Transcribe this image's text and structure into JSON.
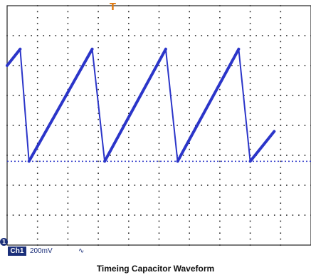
{
  "chart_data": {
    "type": "line",
    "title": "Timeing Capacitor Waveform",
    "xlim": [
      0,
      10
    ],
    "ylim": [
      -4,
      4
    ],
    "grid": true,
    "series": [
      {
        "color": "#2b35c9",
        "x": [
          0,
          0.43,
          0.72,
          2.8,
          3.21,
          5.22,
          5.61,
          7.62,
          8.0,
          8.79
        ],
        "y": [
          2.0,
          2.55,
          -1.2,
          2.55,
          -1.2,
          2.55,
          -1.2,
          2.55,
          -1.2,
          -0.2
        ]
      }
    ],
    "reference_line": {
      "y": -1.2,
      "style": "dotted",
      "color": "#2b35c9"
    }
  },
  "channel": {
    "label": "Ch1",
    "volts_per_div": "200mV",
    "coupling": "∿"
  },
  "markers": {
    "trigger": "T",
    "ground": "1"
  },
  "colors": {
    "trace": "#2b35c9",
    "grid": "#222222",
    "badge": "#1b2f7a",
    "trigger": "#e07a10"
  }
}
